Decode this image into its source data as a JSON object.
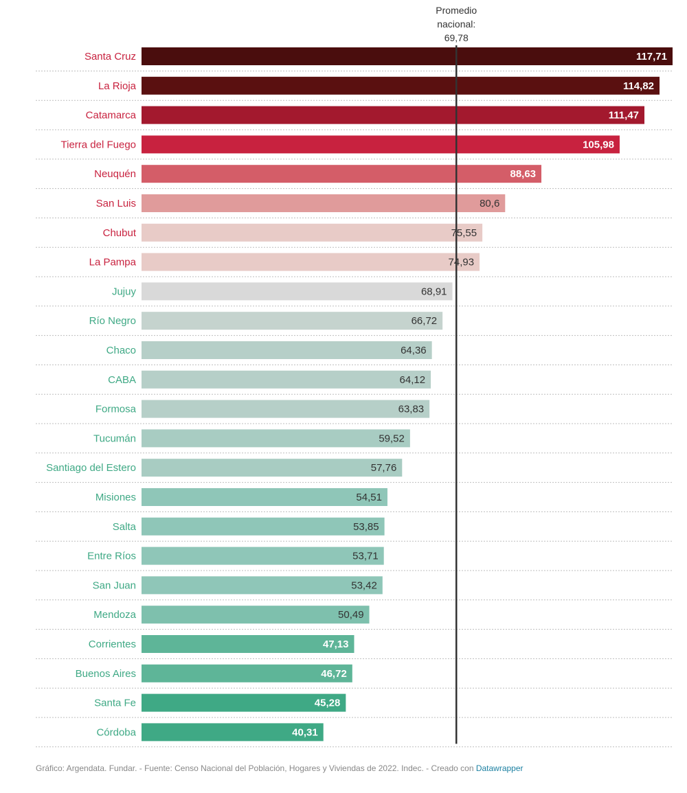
{
  "chart_data": {
    "type": "bar",
    "orientation": "horizontal",
    "categories": [
      "Santa Cruz",
      "La Rioja",
      "Catamarca",
      "Tierra del Fuego",
      "Neuquén",
      "San Luis",
      "Chubut",
      "La Pampa",
      "Jujuy",
      "Río Negro",
      "Chaco",
      "CABA",
      "Formosa",
      "Tucumán",
      "Santiago del Estero",
      "Misiones",
      "Salta",
      "Entre Ríos",
      "San Juan",
      "Mendoza",
      "Corrientes",
      "Buenos Aires",
      "Santa Fe",
      "Córdoba"
    ],
    "values": [
      117.71,
      114.82,
      111.47,
      105.98,
      88.63,
      80.6,
      75.55,
      74.93,
      68.91,
      66.72,
      64.36,
      64.12,
      63.83,
      59.52,
      57.76,
      54.51,
      53.85,
      53.71,
      53.42,
      50.49,
      47.13,
      46.72,
      45.28,
      40.31
    ],
    "value_labels": [
      "117,71",
      "114,82",
      "111,47",
      "105,98",
      "88,63",
      "80,6",
      "75,55",
      "74,93",
      "68,91",
      "66,72",
      "64,36",
      "64,12",
      "63,83",
      "59,52",
      "57,76",
      "54,51",
      "53,85",
      "53,71",
      "53,42",
      "50,49",
      "47,13",
      "46,72",
      "45,28",
      "40,31"
    ],
    "colors": [
      "#4a0d0d",
      "#5a1010",
      "#a3192e",
      "#c8223f",
      "#d45d68",
      "#e09b9b",
      "#e8cbc7",
      "#e8cbc7",
      "#d9d9d9",
      "#c5d3ce",
      "#b6cfc8",
      "#b6cfc8",
      "#b6cfc8",
      "#a8ccc2",
      "#a8ccc2",
      "#8fc6b8",
      "#8fc6b8",
      "#8fc6b8",
      "#8fc6b8",
      "#7ec0ad",
      "#5eb598",
      "#5eb598",
      "#3fa985",
      "#3fa985"
    ],
    "label_colors": [
      "#c8223f",
      "#c8223f",
      "#c8223f",
      "#c8223f",
      "#c8223f",
      "#c8223f",
      "#c8223f",
      "#c8223f",
      "#3fa985",
      "#3fa985",
      "#3fa985",
      "#3fa985",
      "#3fa985",
      "#3fa985",
      "#3fa985",
      "#3fa985",
      "#3fa985",
      "#3fa985",
      "#3fa985",
      "#3fa985",
      "#3fa985",
      "#3fa985",
      "#3fa985",
      "#3fa985"
    ],
    "value_label_colors": [
      "#ffffff",
      "#ffffff",
      "#ffffff",
      "#ffffff",
      "#ffffff",
      "#333333",
      "#333333",
      "#333333",
      "#333333",
      "#333333",
      "#333333",
      "#333333",
      "#333333",
      "#333333",
      "#333333",
      "#333333",
      "#333333",
      "#333333",
      "#333333",
      "#333333",
      "#ffffff",
      "#ffffff",
      "#ffffff",
      "#ffffff"
    ],
    "xlim": [
      0,
      117.71
    ],
    "reference_line": {
      "value": 69.78,
      "label_lines": [
        "Promedio",
        "nacional:",
        "69,78"
      ]
    }
  },
  "footer": {
    "text": "Gráfico: Argendata. Fundar. - Fuente: Censo Nacional del Población, Hogares y Viviendas de 2022. Indec. - Creado con ",
    "link": "Datawrapper"
  }
}
